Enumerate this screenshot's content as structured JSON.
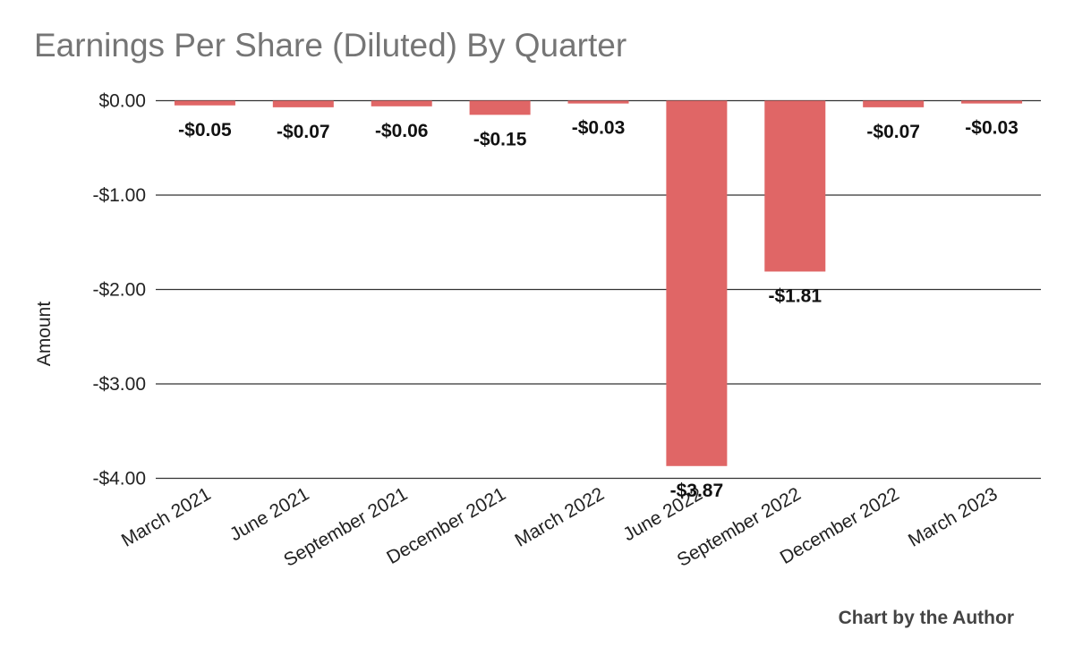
{
  "chart_data": {
    "type": "bar",
    "title": "Earnings Per Share (Diluted) By Quarter",
    "ylabel": "Amount",
    "xlabel": "",
    "categories": [
      "March 2021",
      "June 2021",
      "September 2021",
      "December 2021",
      "March 2022",
      "June 2022",
      "September 2022",
      "December 2022",
      "March 2023"
    ],
    "values": [
      -0.05,
      -0.07,
      -0.06,
      -0.15,
      -0.03,
      -3.87,
      -1.81,
      -0.07,
      -0.03
    ],
    "data_labels": [
      "-$0.05",
      "-$0.07",
      "-$0.06",
      "-$0.15",
      "-$0.03",
      "-$3.87",
      "-$1.81",
      "-$0.07",
      "-$0.03"
    ],
    "y_ticks": [
      0,
      -1,
      -2,
      -3,
      -4
    ],
    "y_tick_labels": [
      "$0.00",
      "-$1.00",
      "-$2.00",
      "-$3.00",
      "-$4.00"
    ],
    "ylim": [
      -4,
      0
    ],
    "grid": true,
    "legend": "none",
    "bar_color": "#e06666"
  },
  "credit": "Chart by the Author"
}
